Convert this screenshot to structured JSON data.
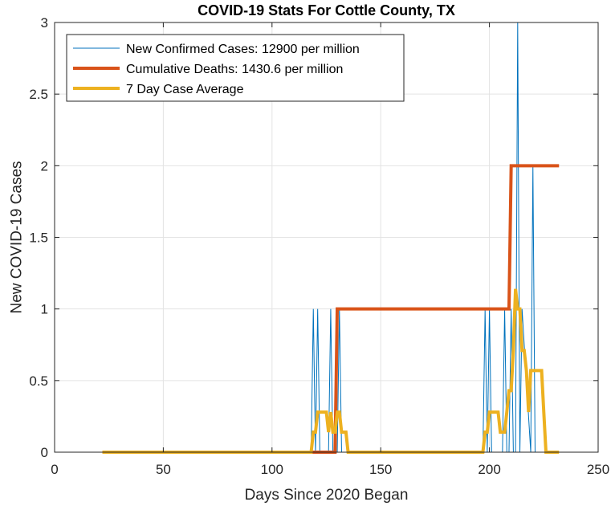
{
  "chart_data": {
    "type": "line",
    "title": "COVID-19 Stats For Cottle County, TX",
    "xlabel": "Days Since 2020 Began",
    "ylabel": "New COVID-19 Cases",
    "xlim": [
      0,
      250
    ],
    "ylim": [
      0,
      3
    ],
    "xticks": [
      0,
      50,
      100,
      150,
      200,
      250
    ],
    "yticks": [
      0,
      0.5,
      1,
      1.5,
      2,
      2.5,
      3
    ],
    "xtick_labels": [
      "0",
      "50",
      "100",
      "150",
      "200",
      "250"
    ],
    "ytick_labels": [
      "0",
      "0.5",
      "1",
      "1.5",
      "2",
      "2.5",
      "3"
    ],
    "grid": true,
    "legend_position": "top-left",
    "series": [
      {
        "name": "New Confirmed Cases: 12900 per million",
        "color": "#0072BD",
        "line_width": 1,
        "x": [
          22,
          118,
          119,
          120,
          121,
          122,
          126,
          127,
          128,
          129,
          130,
          131,
          132,
          197,
          198,
          199,
          200,
          201,
          206,
          207,
          208,
          209,
          210,
          211,
          212,
          213,
          214,
          215,
          219,
          220,
          221,
          232
        ],
        "y": [
          0,
          0,
          1,
          0,
          1,
          0,
          0,
          1,
          0,
          0,
          0,
          1,
          0,
          0,
          1,
          0,
          1,
          0,
          0,
          1,
          0,
          0,
          1,
          0,
          0,
          3,
          0,
          1,
          0,
          2,
          0,
          0
        ]
      },
      {
        "name": "Cumulative Deaths: 1430.6 per million",
        "color": "#D95319",
        "line_width": 4,
        "x": [
          22,
          129,
          130,
          209,
          210,
          232
        ],
        "y": [
          0,
          0,
          1,
          1,
          2,
          2
        ]
      },
      {
        "name": "7 Day Case Average",
        "color": "#EDB120",
        "line_width": 4,
        "x": [
          22,
          118,
          119,
          120,
          121,
          122,
          123,
          124,
          125,
          126,
          127,
          128,
          129,
          130,
          131,
          132,
          133,
          134,
          135,
          136,
          197,
          198,
          199,
          200,
          201,
          202,
          203,
          204,
          205,
          206,
          207,
          208,
          209,
          210,
          211,
          212,
          213,
          214,
          215,
          216,
          217,
          218,
          219,
          220,
          221,
          222,
          223,
          224,
          225,
          226,
          227,
          232
        ],
        "y": [
          0,
          0,
          0.14,
          0.14,
          0.28,
          0.28,
          0.28,
          0.28,
          0.28,
          0.14,
          0.28,
          0.14,
          0.14,
          0.28,
          0.28,
          0.14,
          0.14,
          0.14,
          0,
          0,
          0,
          0.14,
          0.14,
          0.28,
          0.28,
          0.28,
          0.28,
          0.28,
          0.14,
          0.14,
          0.14,
          0.28,
          0.43,
          0.43,
          0.71,
          1.14,
          1.0,
          1.0,
          0.71,
          0.71,
          0.57,
          0.28,
          0.57,
          0.57,
          0.57,
          0.57,
          0.57,
          0.57,
          0.28,
          0,
          0,
          0
        ]
      }
    ]
  }
}
